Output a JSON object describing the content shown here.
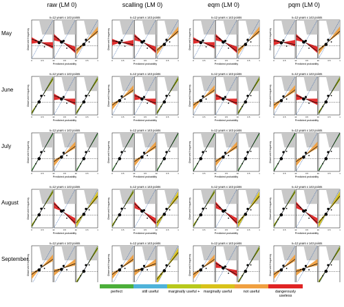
{
  "columns": [
    "raw (LM 0)",
    "scalling (LM 0)",
    "eqm (LM 0)",
    "pqm (LM 0)"
  ],
  "rows": [
    "May",
    "June",
    "July",
    "August",
    "September"
  ],
  "panel_header": "n=12 years x 143 points",
  "axis_labels": {
    "x": "Predicted probability",
    "y": "Observed frequency"
  },
  "colors": {
    "perfect": "#4caf3a",
    "still_useful": "#4fb3d9",
    "marginally_useful_plus": "#b8c91c",
    "marginally_useful": "#d8c21a",
    "not_useful": "#f0a040",
    "dangerously_useless": "#e02424",
    "grey_zone": "#c8c8c8"
  },
  "legend": [
    {
      "key": "perfect",
      "label": "perfect"
    },
    {
      "key": "still_useful",
      "label": "still useful"
    },
    {
      "key": "marginally_useful_plus",
      "label": "marginally useful +"
    },
    {
      "key": "marginally_useful",
      "label": "marginally useful"
    },
    {
      "key": "not_useful",
      "label": "not useful"
    },
    {
      "key": "dangerously_useless",
      "label": "dangerously useless"
    }
  ],
  "chart_data": {
    "type": "reliability-diagram-grid",
    "xlabel": "Predicted probability",
    "ylabel": "Observed frequency",
    "xlim": [
      0,
      1
    ],
    "ylim": [
      0,
      1
    ],
    "subpanels": [
      "below",
      "normal",
      "above"
    ],
    "categories": [
      [
        "dangerously_useless",
        "dangerously_useless",
        "not_useful"
      ],
      [
        "dangerously_useless",
        "dangerously_useless",
        "not_useful"
      ],
      [
        "dangerously_useless",
        "dangerously_useless",
        "not_useful"
      ],
      [
        "dangerously_useless",
        "dangerously_useless",
        "not_useful"
      ],
      [
        "marginally_useful_plus",
        "dangerously_useless",
        "marginally_useful_plus"
      ],
      [
        "not_useful",
        "dangerously_useless",
        "marginally_useful_plus"
      ],
      [
        "not_useful",
        "dangerously_useless",
        "marginally_useful_plus"
      ],
      [
        "not_useful",
        "dangerously_useless",
        "marginally_useful_plus"
      ],
      [
        "perfect",
        "not_useful",
        "perfect"
      ],
      [
        "perfect",
        "not_useful",
        "perfect"
      ],
      [
        "perfect",
        "not_useful",
        "perfect"
      ],
      [
        "perfect",
        "not_useful",
        "perfect"
      ],
      [
        "marginally_useful_plus",
        "dangerously_useless",
        "marginally_useful"
      ],
      [
        "marginally_useful_plus",
        "dangerously_useless",
        "marginally_useful"
      ],
      [
        "marginally_useful_plus",
        "dangerously_useless",
        "marginally_useful"
      ],
      [
        "marginally_useful_plus",
        "dangerously_useless",
        "marginally_useful"
      ],
      [
        "not_useful",
        "not_useful",
        "marginally_useful_plus"
      ],
      [
        "not_useful",
        "not_useful",
        "marginally_useful"
      ],
      [
        "not_useful",
        "dangerously_useless",
        "marginally_useful_plus"
      ],
      [
        "not_useful",
        "not_useful",
        "marginally_useful_plus"
      ]
    ],
    "slopes": [
      [
        -0.2,
        -0.4,
        0.5
      ],
      [
        -0.1,
        -0.4,
        0.5
      ],
      [
        -0.2,
        -0.4,
        0.5
      ],
      [
        -0.1,
        -0.4,
        0.5
      ],
      [
        0.9,
        -0.2,
        0.9
      ],
      [
        0.4,
        -0.2,
        0.9
      ],
      [
        0.4,
        -0.2,
        0.9
      ],
      [
        0.4,
        -0.2,
        0.9
      ],
      [
        1.0,
        0.4,
        1.0
      ],
      [
        1.0,
        0.4,
        1.0
      ],
      [
        1.0,
        0.4,
        1.0
      ],
      [
        1.0,
        0.4,
        1.0
      ],
      [
        0.9,
        -0.5,
        0.7
      ],
      [
        0.9,
        -0.5,
        0.7
      ],
      [
        0.9,
        -0.5,
        0.7
      ],
      [
        0.9,
        -0.5,
        0.7
      ],
      [
        0.4,
        0.2,
        0.9
      ],
      [
        0.4,
        0.2,
        0.7
      ],
      [
        0.4,
        -0.3,
        0.9
      ],
      [
        0.4,
        0.2,
        0.9
      ]
    ]
  }
}
